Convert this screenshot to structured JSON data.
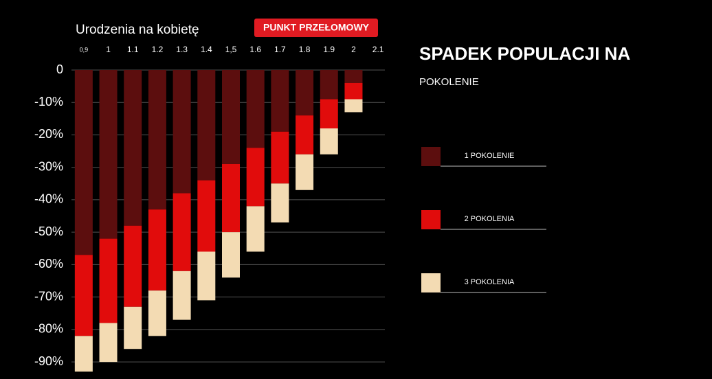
{
  "chart_data": {
    "type": "stacked-bar",
    "title": "SPADEK POPULACJI NA",
    "subtitle": "POKOLENIE",
    "x_label": "Urodzenia na kobietę",
    "annotation": "PUNKT PRZEŁOMOWY",
    "categories": [
      "0,9",
      "1",
      "1.1",
      "1.2",
      "1.3",
      "1.4",
      "1,5",
      "1.6",
      "1.7",
      "1.8",
      "1.9",
      "2",
      "2.1"
    ],
    "series": [
      {
        "name": "1 POKOLENIE",
        "color": "#5c0e0e",
        "values": [
          -57,
          -52,
          -48,
          -43,
          -38,
          -34,
          -29,
          -24,
          -19,
          -14,
          -9,
          -4,
          null
        ]
      },
      {
        "name": "2 POKOLENIA",
        "color": "#e10c0c",
        "values": [
          -25,
          -26,
          -25,
          -25,
          -24,
          -22,
          -21,
          -18,
          -16,
          -12,
          -9,
          -5,
          null
        ]
      },
      {
        "name": "3 POKOLENIA",
        "color": "#f3dbb3",
        "values": [
          -11,
          -12,
          -13,
          -14,
          -15,
          -15,
          -14,
          -14,
          -12,
          -11,
          -8,
          -4,
          null
        ]
      }
    ],
    "ylim": [
      -94,
      0
    ],
    "yticks": [
      0,
      {
        "value": -10,
        "label": "-10%"
      },
      {
        "value": -20,
        "label": "-20%"
      },
      {
        "value": -30,
        "label": "-30%"
      },
      {
        "value": -40,
        "label": "-40%"
      },
      {
        "value": -50,
        "label": "-50%"
      },
      {
        "value": -60,
        "label": "-60%"
      },
      {
        "value": -70,
        "label": "-70%"
      },
      {
        "value": -80,
        "label": "-80%"
      },
      {
        "value": -90,
        "label": "-90%"
      }
    ],
    "grid": true
  }
}
